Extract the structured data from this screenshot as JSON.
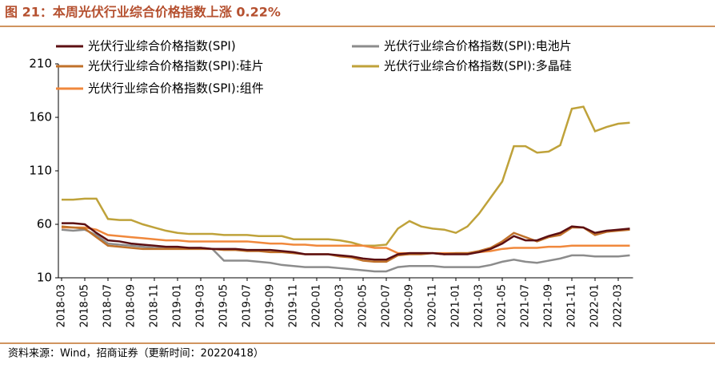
{
  "chart_data": {
    "type": "line",
    "title": "图 21：本周光伏行业综合价格指数上涨 0.22%",
    "note": "资料来源：Wind，招商证券（更新时间：20220418）",
    "categories": [
      "2018-03",
      null,
      "2018-05",
      null,
      "2018-07",
      null,
      "2018-09",
      null,
      "2018-11",
      null,
      "2019-01",
      null,
      "2019-03",
      null,
      "2019-05",
      null,
      "2019-07",
      null,
      "2019-09",
      null,
      "2019-11",
      null,
      "2020-01",
      null,
      "2020-03",
      null,
      "2020-05",
      null,
      "2020-07",
      null,
      "2020-09",
      null,
      "2020-11",
      null,
      "2021-01",
      null,
      "2021-03",
      null,
      "2021-05",
      null,
      "2021-07",
      null,
      "2021-09",
      null,
      "2021-11",
      null,
      "2022-01",
      null,
      "2022-03",
      null
    ],
    "ylim": [
      10,
      210
    ],
    "yticks": [
      10,
      60,
      110,
      160,
      210
    ],
    "series": [
      {
        "name": "光伏行业综合价格指数(SPI)",
        "color": "#5c0f12",
        "values": [
          61,
          61,
          60,
          52,
          45,
          44,
          42,
          41,
          40,
          39,
          39,
          38,
          38,
          37,
          37,
          37,
          36,
          36,
          36,
          35,
          34,
          32,
          32,
          32,
          31,
          30,
          28,
          27,
          27,
          32,
          33,
          33,
          33,
          32,
          32,
          32,
          34,
          37,
          42,
          49,
          45,
          45,
          49,
          52,
          58,
          57,
          52,
          54,
          55,
          56
        ]
      },
      {
        "name": "光伏行业综合价格指数(SPI):电池片",
        "color": "#8c8c8c",
        "values": [
          55,
          54,
          55,
          50,
          42,
          41,
          40,
          39,
          38,
          38,
          38,
          38,
          38,
          37,
          26,
          26,
          26,
          25,
          24,
          22,
          21,
          20,
          20,
          20,
          19,
          18,
          17,
          16,
          16,
          20,
          21,
          21,
          21,
          20,
          20,
          20,
          20,
          22,
          25,
          27,
          25,
          24,
          26,
          28,
          31,
          31,
          30,
          30,
          30,
          31
        ]
      },
      {
        "name": "光伏行业综合价格指数(SPI):硅片",
        "color": "#c0712a",
        "values": [
          58,
          57,
          56,
          48,
          40,
          39,
          38,
          37,
          37,
          37,
          37,
          37,
          37,
          37,
          36,
          36,
          35,
          35,
          34,
          34,
          33,
          32,
          32,
          32,
          30,
          29,
          26,
          25,
          25,
          31,
          32,
          32,
          33,
          32,
          33,
          33,
          35,
          38,
          44,
          52,
          48,
          44,
          48,
          50,
          57,
          57,
          50,
          53,
          54,
          55
        ]
      },
      {
        "name": "光伏行业综合价格指数(SPI):多晶硅",
        "color": "#bfa23a",
        "values": [
          83,
          83,
          84,
          84,
          65,
          64,
          64,
          60,
          57,
          54,
          52,
          51,
          51,
          51,
          50,
          50,
          50,
          49,
          49,
          49,
          46,
          46,
          46,
          46,
          45,
          43,
          40,
          40,
          41,
          56,
          63,
          58,
          56,
          55,
          52,
          58,
          70,
          85,
          100,
          133,
          133,
          127,
          128,
          134,
          168,
          170,
          147,
          151,
          154,
          155
        ]
      },
      {
        "name": "光伏行业综合价格指数(SPI):组件",
        "color": "#f0883c",
        "values": [
          57,
          57,
          57,
          55,
          50,
          49,
          48,
          47,
          46,
          45,
          45,
          44,
          44,
          44,
          44,
          44,
          44,
          43,
          42,
          42,
          41,
          41,
          40,
          40,
          40,
          40,
          40,
          38,
          38,
          33,
          33,
          33,
          33,
          33,
          33,
          33,
          34,
          35,
          37,
          38,
          38,
          38,
          39,
          39,
          40,
          40,
          40,
          40,
          40,
          40
        ]
      }
    ]
  }
}
